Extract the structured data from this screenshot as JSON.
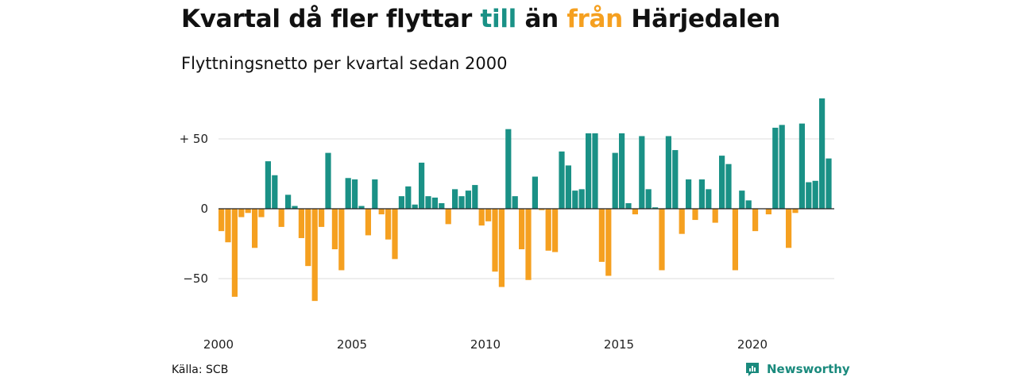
{
  "title": {
    "part1": "Kvartal då fler flyttar ",
    "till": "till",
    "part2": " än ",
    "fran": "från",
    "part3": " Härjedalen"
  },
  "subtitle": "Flyttningsnetto per kvartal sedan 2000",
  "source": "Källa: SCB",
  "brand": "Newsworthy",
  "colors": {
    "positive": "#1a9186",
    "negative": "#f5a020",
    "title_till": "#1a9186",
    "title_fran": "#f5a020",
    "brand": "#1a8a7d"
  },
  "chart_data": {
    "type": "bar",
    "x_start": "2000 Q1",
    "ylim": [
      -75,
      80
    ],
    "y_ticks": [
      50,
      0,
      -50
    ],
    "y_tick_labels": [
      "+ 50",
      "0",
      "−50"
    ],
    "x_ticks": [
      "2000",
      "2005",
      "2010",
      "2015",
      "2020"
    ],
    "grid": true,
    "values": [
      -16,
      -24,
      -63,
      -6,
      -3,
      -28,
      -6,
      34,
      24,
      -13,
      10,
      2,
      -21,
      -41,
      -66,
      -13,
      40,
      -29,
      -44,
      22,
      21,
      2,
      -19,
      21,
      -4,
      -22,
      -36,
      9,
      16,
      3,
      33,
      9,
      8,
      4,
      -11,
      14,
      9,
      13,
      17,
      -12,
      -9,
      -45,
      -56,
      57,
      9,
      -29,
      -51,
      23,
      -1,
      -30,
      -31,
      41,
      31,
      13,
      14,
      54,
      54,
      -38,
      -48,
      40,
      54,
      4,
      -4,
      52,
      14,
      1,
      -44,
      52,
      42,
      -18,
      21,
      -8,
      21,
      14,
      -10,
      38,
      32,
      -44,
      13,
      6,
      -16,
      0,
      -4,
      58,
      60,
      -28,
      -3,
      61,
      19,
      20,
      79,
      36
    ]
  }
}
